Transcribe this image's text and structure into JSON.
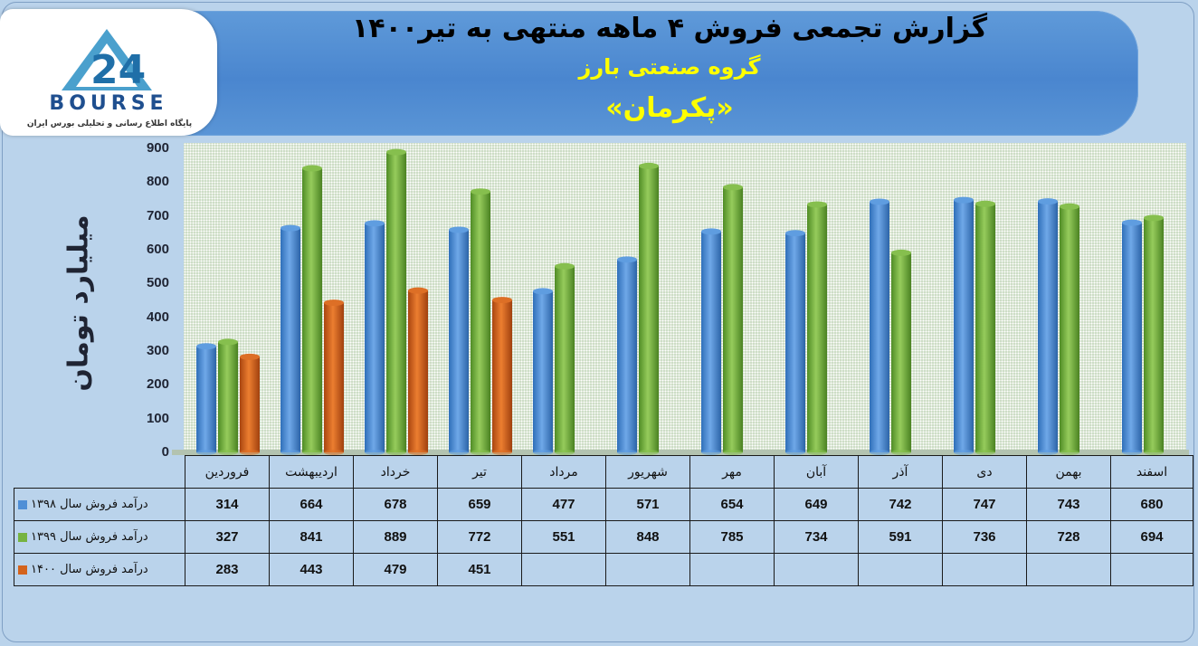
{
  "header": {
    "title": "گزارش تجمعی فروش ۴ ماهه منتهی به تیر۱۴۰۰",
    "subtitle_group": "گروه صنعتی بارز",
    "subtitle_company": "«پکرمان»"
  },
  "logo": {
    "brand": "BOURSE",
    "tagline": "پایگاه اطلاع رسانی و تحلیلی بورس ایران"
  },
  "colors": {
    "series_1398": "#4f8fd6",
    "series_1399": "#76b340",
    "series_1400": "#d4631c",
    "banner": "#4a86cf",
    "title_accent": "#ffff00"
  },
  "chart_data": {
    "type": "bar",
    "ylabel": "میلیارد تومان",
    "ylim": [
      0,
      900
    ],
    "yticks": [
      "0",
      "100",
      "200",
      "300",
      "400",
      "500",
      "600",
      "700",
      "800",
      "900"
    ],
    "grid": false,
    "categories": [
      "فروردین",
      "اردیبهشت",
      "خرداد",
      "تیر",
      "مرداد",
      "شهریور",
      "مهر",
      "آبان",
      "آذر",
      "دی",
      "بهمن",
      "اسفند"
    ],
    "series": [
      {
        "name": "درآمد فروش سال ۱۳۹۸",
        "values": [
          314,
          664,
          678,
          659,
          477,
          571,
          654,
          649,
          742,
          747,
          743,
          680
        ]
      },
      {
        "name": "درآمد فروش سال ۱۳۹۹",
        "values": [
          327,
          841,
          889,
          772,
          551,
          848,
          785,
          734,
          591,
          736,
          728,
          694
        ]
      },
      {
        "name": "درآمد فروش سال ۱۴۰۰",
        "values": [
          283,
          443,
          479,
          451,
          null,
          null,
          null,
          null,
          null,
          null,
          null,
          null
        ]
      }
    ],
    "legend": "data table, left"
  }
}
